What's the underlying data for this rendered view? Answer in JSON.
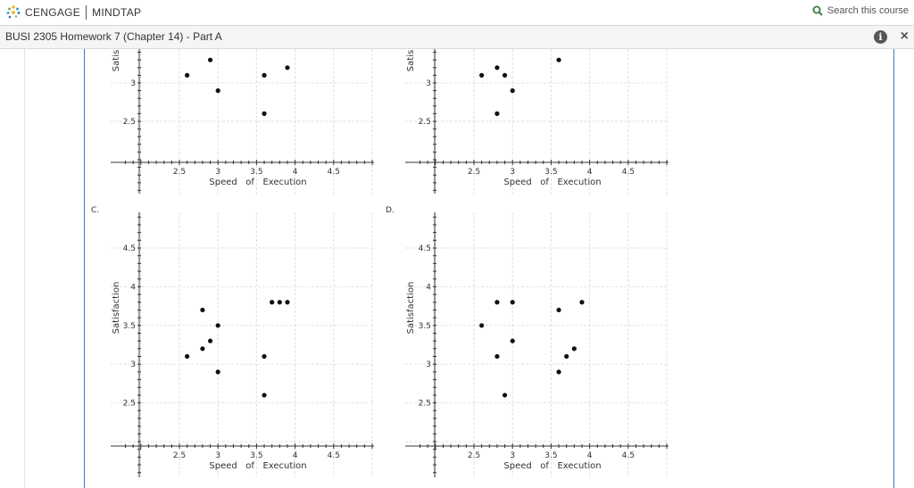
{
  "header": {
    "brand_left": "CENGAGE",
    "brand_right": "MINDTAP",
    "search_label": "Search this course",
    "icons": {
      "logo": "cengage-dots-logo",
      "search": "search-icon"
    },
    "colors": {
      "search_icon": "#3d7d3d",
      "content_border": "#3a78c0"
    }
  },
  "titlebar": {
    "title": "BUSI 2305 Homework 7 (Chapter 14) - Part A",
    "info_label": "i",
    "close_label": "×"
  },
  "chart_data": [
    {
      "type": "scatter",
      "panel": "top-left",
      "option_label": "",
      "xlabel": "Speed   of   Execution",
      "ylabel": "Satis",
      "x_ticks": [
        "2.5",
        "3",
        "3.5",
        "4",
        "4.5"
      ],
      "y_ticks": [
        "3",
        "2.5"
      ],
      "xlim": [
        1.8,
        5.1
      ],
      "points": [
        [
          2.6,
          3.1
        ],
        [
          2.9,
          3.3
        ],
        [
          3.0,
          2.9
        ],
        [
          3.6,
          3.1
        ],
        [
          3.9,
          3.2
        ],
        [
          3.6,
          2.6
        ]
      ]
    },
    {
      "type": "scatter",
      "panel": "top-right",
      "option_label": "",
      "xlabel": "Speed   of   Execution",
      "ylabel": "Satis",
      "x_ticks": [
        "2.5",
        "3",
        "3.5",
        "4",
        "4.5"
      ],
      "y_ticks": [
        "3",
        "2.5"
      ],
      "xlim": [
        1.8,
        5.1
      ],
      "points": [
        [
          2.6,
          3.1
        ],
        [
          2.8,
          3.2
        ],
        [
          2.9,
          3.1
        ],
        [
          3.0,
          2.9
        ],
        [
          2.8,
          2.6
        ],
        [
          3.6,
          3.3
        ]
      ]
    },
    {
      "type": "scatter",
      "panel": "bottom-left",
      "option_label": "C.",
      "xlabel": "Speed   of   Execution",
      "ylabel": "Satisfaction",
      "x_ticks": [
        "2.5",
        "3",
        "3.5",
        "4",
        "4.5"
      ],
      "y_ticks": [
        "4.5",
        "4",
        "3.5",
        "3",
        "2.5"
      ],
      "xlim": [
        1.8,
        5.1
      ],
      "ylim": [
        1.9,
        5.1
      ],
      "points": [
        [
          2.6,
          3.1
        ],
        [
          2.8,
          3.7
        ],
        [
          2.8,
          3.2
        ],
        [
          2.9,
          3.3
        ],
        [
          3.0,
          3.5
        ],
        [
          3.0,
          2.9
        ],
        [
          3.6,
          3.1
        ],
        [
          3.6,
          2.6
        ],
        [
          3.7,
          3.8
        ],
        [
          3.8,
          3.8
        ],
        [
          3.9,
          3.8
        ]
      ]
    },
    {
      "type": "scatter",
      "panel": "bottom-right",
      "option_label": "D.",
      "xlabel": "Speed   of   Execution",
      "ylabel": "Satisfaction",
      "x_ticks": [
        "2.5",
        "3",
        "3.5",
        "4",
        "4.5"
      ],
      "y_ticks": [
        "4.5",
        "4",
        "3.5",
        "3",
        "2.5"
      ],
      "xlim": [
        1.8,
        5.1
      ],
      "ylim": [
        1.9,
        5.1
      ],
      "points": [
        [
          2.6,
          3.5
        ],
        [
          2.8,
          3.8
        ],
        [
          2.8,
          3.1
        ],
        [
          2.9,
          2.6
        ],
        [
          3.0,
          3.8
        ],
        [
          3.0,
          3.3
        ],
        [
          3.6,
          3.7
        ],
        [
          3.6,
          2.9
        ],
        [
          3.7,
          3.1
        ],
        [
          3.8,
          3.2
        ],
        [
          3.9,
          3.8
        ]
      ]
    }
  ]
}
